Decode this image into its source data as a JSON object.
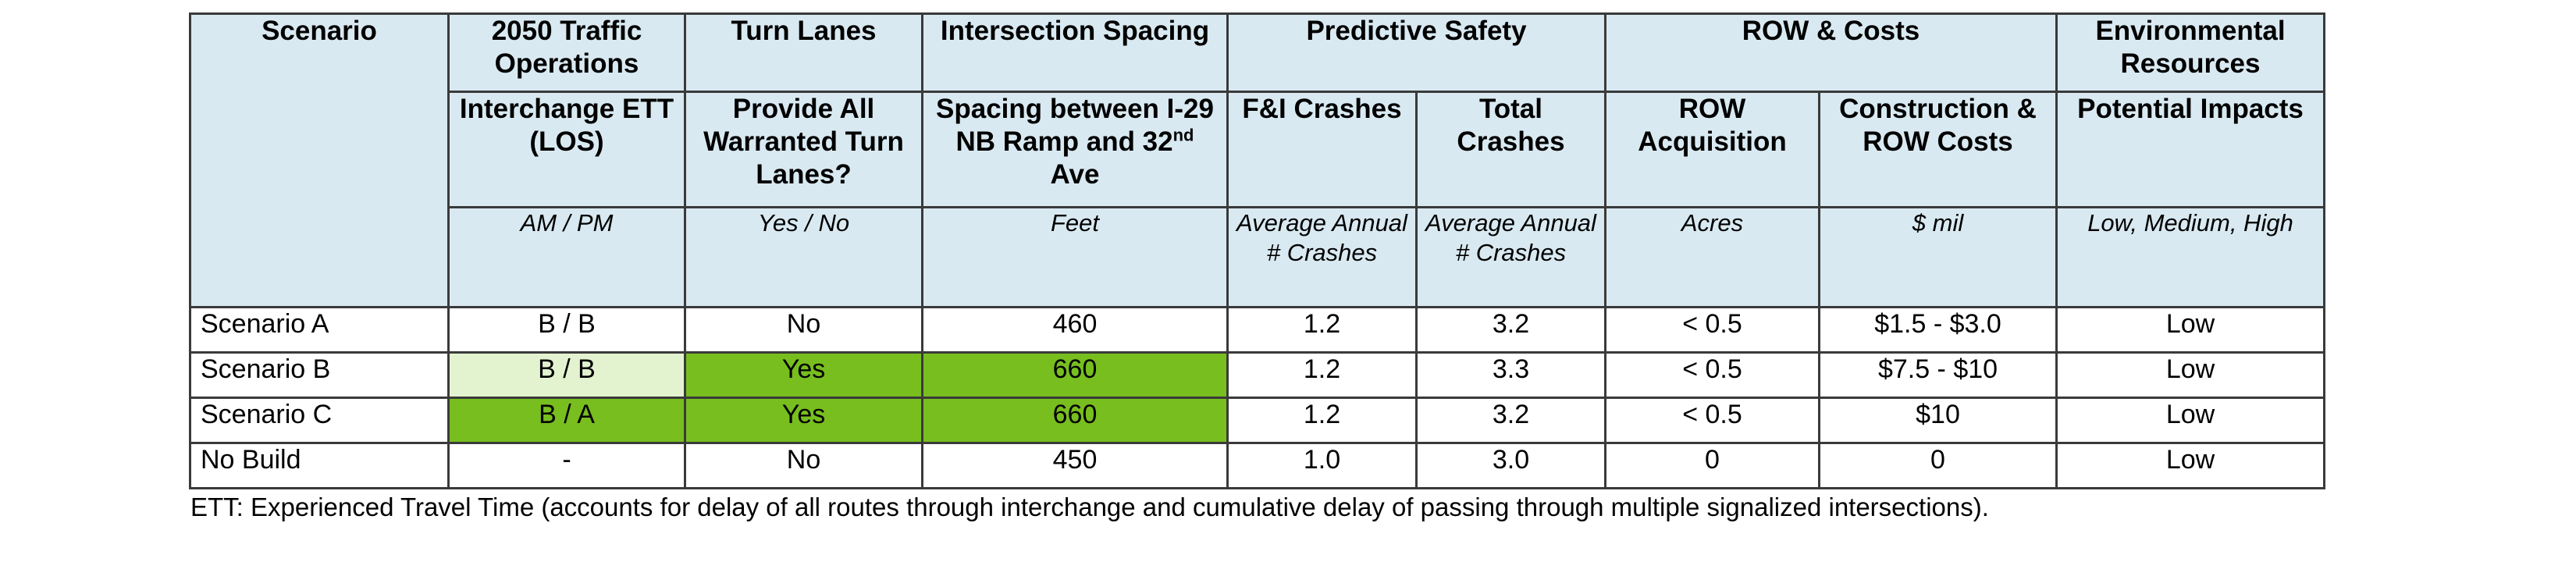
{
  "groups": {
    "scenario": "Scenario",
    "traffic": "2050 Traffic Operations",
    "turn_lanes": "Turn Lanes",
    "spacing": "Intersection Spacing",
    "safety": "Predictive Safety",
    "row_costs": "ROW & Costs",
    "env": "Environmental Resources"
  },
  "metrics": {
    "interchange": "Interchange ETT (LOS)",
    "turn_lanes": "Provide All Warranted Turn Lanes?",
    "spacing_pre": "Spacing between I-29 NB Ramp and 32",
    "spacing_sup": "nd",
    "spacing_post": " Ave",
    "fi_crashes": "F&I Crashes",
    "total_crashes": "Total Crashes",
    "row_acq": "ROW Acquisition",
    "costs": "Construction & ROW Costs",
    "impacts": "Potential Impacts"
  },
  "units": {
    "interchange": "AM / PM",
    "turn_lanes": "Yes / No",
    "spacing": "Feet",
    "fi_crashes": "Average Annual # Crashes",
    "total_crashes": "Average Annual # Crashes",
    "row_acq": "Acres",
    "costs": "$ mil",
    "impacts": "Low, Medium, High"
  },
  "rows": [
    {
      "scenario": "Scenario A",
      "ett": "B / B",
      "turn": "No",
      "spacing": "460",
      "fi": "1.2",
      "total": "3.2",
      "row": "< 0.5",
      "cost": "$1.5 - $3.0",
      "impacts": "Low"
    },
    {
      "scenario": "Scenario B",
      "ett": "B / B",
      "turn": "Yes",
      "spacing": "660",
      "fi": "1.2",
      "total": "3.3",
      "row": "< 0.5",
      "cost": "$7.5 - $10",
      "impacts": "Low"
    },
    {
      "scenario": "Scenario C",
      "ett": "B / A",
      "turn": "Yes",
      "spacing": "660",
      "fi": "1.2",
      "total": "3.2",
      "row": "< 0.5",
      "cost": "$10",
      "impacts": "Low"
    },
    {
      "scenario": "No Build",
      "ett": "-",
      "turn": "No",
      "spacing": "450",
      "fi": "1.0",
      "total": "3.0",
      "row": "0",
      "cost": "0",
      "impacts": "Low"
    }
  ],
  "colors": {
    "header_bg": "#d9e9f1",
    "highlight_best": "#78be1f",
    "highlight_good": "#e3f3d0"
  },
  "footnote": "ETT: Experienced Travel Time (accounts for delay of all routes through interchange and cumulative delay of passing through multiple signalized intersections)."
}
